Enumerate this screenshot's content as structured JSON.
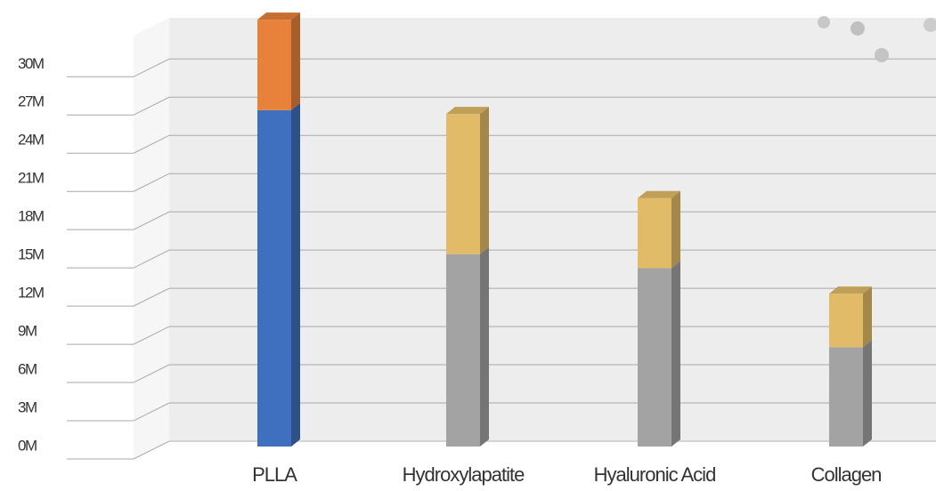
{
  "chart_data": {
    "type": "bar3d_stacked",
    "categories": [
      "PLLA",
      "Hydroxylapatite",
      "Hyaluronic Acid",
      "Collagen"
    ],
    "series": [
      {
        "colors": [
          "#3f6fbf",
          "#a3a3a3",
          "#a3a3a3",
          "#a3a3a3"
        ],
        "values": [
          26.4,
          15.1,
          14.0,
          7.8
        ]
      },
      {
        "colors": [
          "#e8823a",
          "#e2bb68",
          "#e2bb68",
          "#e2bb68"
        ],
        "values": [
          7.1,
          11.0,
          5.5,
          4.2
        ]
      }
    ],
    "ylim": [
      0,
      34
    ],
    "yticks": [
      {
        "value": 0,
        "label": "0M"
      },
      {
        "value": 3,
        "label": "3M"
      },
      {
        "value": 6,
        "label": "6M"
      },
      {
        "value": 9,
        "label": "9M"
      },
      {
        "value": 12,
        "label": "12M"
      },
      {
        "value": 15,
        "label": "15M"
      },
      {
        "value": 18,
        "label": "18M"
      },
      {
        "value": 21,
        "label": "21M"
      },
      {
        "value": 24,
        "label": "24M"
      },
      {
        "value": 27,
        "label": "27M"
      },
      {
        "value": 30,
        "label": "30M"
      }
    ],
    "grid": true
  }
}
